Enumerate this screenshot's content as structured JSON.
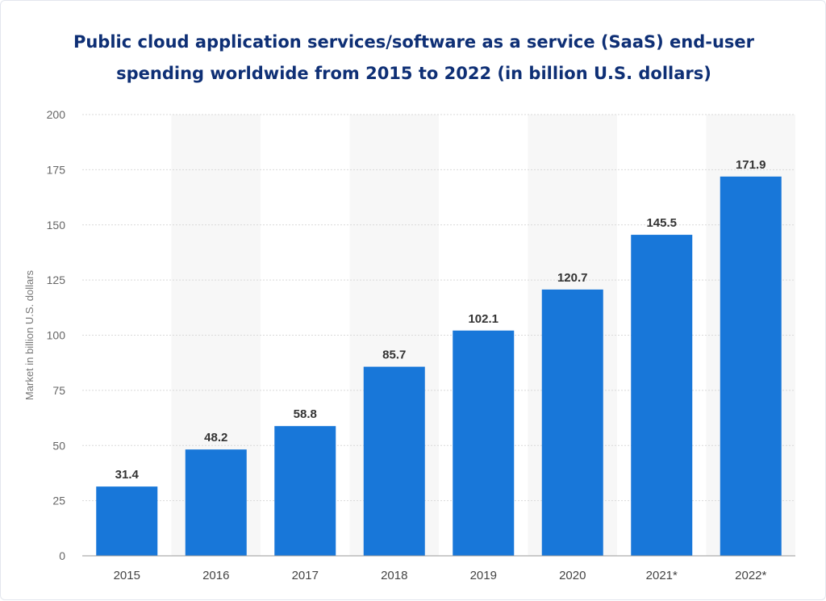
{
  "chart_data": {
    "type": "bar",
    "title": "Public cloud application services/software as a service (SaaS) end-user spending worldwide from 2015 to 2022 (in billion U.S. dollars)",
    "xlabel": "",
    "ylabel": "Market in billion U.S. dollars",
    "categories": [
      "2015",
      "2016",
      "2017",
      "2018",
      "2019",
      "2020",
      "2021*",
      "2022*"
    ],
    "values": [
      31.4,
      48.2,
      58.8,
      85.7,
      102.1,
      120.7,
      145.5,
      171.9
    ],
    "value_labels": [
      "31.4",
      "48.2",
      "58.8",
      "85.7",
      "102.1",
      "120.7",
      "145.5",
      "171.9"
    ],
    "ylim": [
      0,
      200
    ],
    "yticks": [
      "0",
      "25",
      "50",
      "75",
      "100",
      "125",
      "150",
      "175",
      "200"
    ],
    "grid": true,
    "bar_color": "#1877d9",
    "title_color": "#0e2f75"
  }
}
